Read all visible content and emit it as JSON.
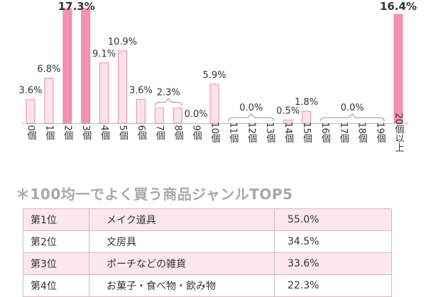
{
  "chart_data": {
    "type": "bar",
    "categories": [
      "0個",
      "1個",
      "2個",
      "3個",
      "4個",
      "5個",
      "6個",
      "7個",
      "8個",
      "9個",
      "10個",
      "11個",
      "12個",
      "13個",
      "14個",
      "15個",
      "16個",
      "17個",
      "18個",
      "19個",
      "20個以上"
    ],
    "values": [
      3.6,
      6.8,
      17.3,
      17.3,
      9.1,
      10.9,
      3.6,
      2.3,
      2.3,
      0.0,
      5.9,
      0.0,
      0.0,
      0.0,
      0.5,
      1.8,
      0.0,
      0.0,
      0.0,
      0.0,
      16.4
    ],
    "highlight": [
      2,
      3,
      20
    ],
    "annotations": [
      {
        "text": "3.6%",
        "target": [
          0
        ]
      },
      {
        "text": "6.8%",
        "target": [
          1
        ]
      },
      {
        "text": "17.3%",
        "target": [
          2,
          3
        ],
        "bold": true
      },
      {
        "text": "9.1%",
        "target": [
          4
        ]
      },
      {
        "text": "10.9%",
        "target": [
          5
        ]
      },
      {
        "text": "3.6%",
        "target": [
          6
        ]
      },
      {
        "text": "2.3%",
        "target": [
          7,
          8
        ],
        "bracket": true
      },
      {
        "text": "0.0%",
        "target": [
          9
        ]
      },
      {
        "text": "5.9%",
        "target": [
          10
        ]
      },
      {
        "text": "0.0%",
        "target": [
          11,
          13
        ],
        "bracket": true
      },
      {
        "text": "0.5%",
        "target": [
          14
        ]
      },
      {
        "text": "1.8%",
        "target": [
          15
        ]
      },
      {
        "text": "0.0%",
        "target": [
          16,
          19
        ],
        "bracket": true
      },
      {
        "text": "16.4%",
        "target": [
          20
        ],
        "bold": true
      }
    ],
    "ylim": [
      0,
      17.3
    ],
    "grid": false,
    "colors": {
      "normal_fill": "#fde4ec",
      "normal_stroke": "#ee8aa7",
      "highlight_fill": "#f492b1",
      "axis": "#bbbbbb",
      "bracket": "#aaaaaa",
      "label": "#333333"
    }
  },
  "subtitle": "＊100均一でよく買う商品ジャンルTOP5",
  "ranking": [
    {
      "rank": "第1位",
      "genre": "メイク道具",
      "pct": "55.0%"
    },
    {
      "rank": "第2位",
      "genre": "文房具",
      "pct": "34.5%"
    },
    {
      "rank": "第3位",
      "genre": "ポーチなどの雑貨",
      "pct": "33.6%"
    },
    {
      "rank": "第4位",
      "genre": "お菓子・食べ物・飲み物",
      "pct": "22.3%"
    }
  ]
}
